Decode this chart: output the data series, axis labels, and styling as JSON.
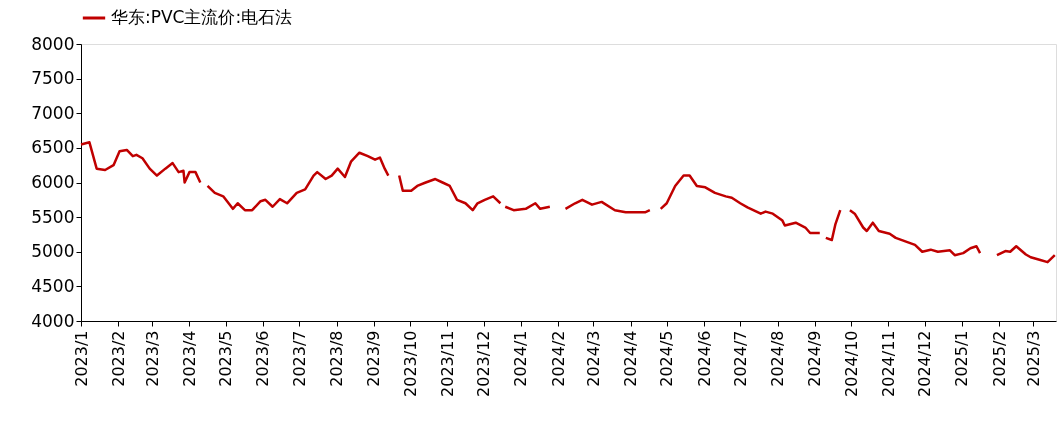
{
  "chart_data": {
    "type": "line",
    "legend": "top",
    "grid": false,
    "line_style": "solid",
    "marker": "none",
    "xlim": [
      "2023-01-01",
      "2025-03-20"
    ],
    "xticks": [
      {
        "value": "2023-01-01",
        "label": "2023/1"
      },
      {
        "value": "2023-02-01",
        "label": "2023/2"
      },
      {
        "value": "2023-03-01",
        "label": "2023/3"
      },
      {
        "value": "2023-04-01",
        "label": "2023/4"
      },
      {
        "value": "2023-05-01",
        "label": "2023/5"
      },
      {
        "value": "2023-06-01",
        "label": "2023/6"
      },
      {
        "value": "2023-07-01",
        "label": "2023/7"
      },
      {
        "value": "2023-08-01",
        "label": "2023/8"
      },
      {
        "value": "2023-09-01",
        "label": "2023/9"
      },
      {
        "value": "2023-10-01",
        "label": "2023/10"
      },
      {
        "value": "2023-11-01",
        "label": "2023/11"
      },
      {
        "value": "2023-12-01",
        "label": "2023/12"
      },
      {
        "value": "2024-01-01",
        "label": "2024/1"
      },
      {
        "value": "2024-02-01",
        "label": "2024/2"
      },
      {
        "value": "2024-03-01",
        "label": "2024/3"
      },
      {
        "value": "2024-04-01",
        "label": "2024/4"
      },
      {
        "value": "2024-05-01",
        "label": "2024/5"
      },
      {
        "value": "2024-06-01",
        "label": "2024/6"
      },
      {
        "value": "2024-07-01",
        "label": "2024/7"
      },
      {
        "value": "2024-08-01",
        "label": "2024/8"
      },
      {
        "value": "2024-09-01",
        "label": "2024/9"
      },
      {
        "value": "2024-10-01",
        "label": "2024/10"
      },
      {
        "value": "2024-11-01",
        "label": "2024/11"
      },
      {
        "value": "2024-12-01",
        "label": "2024/12"
      },
      {
        "value": "2025-01-01",
        "label": "2025/1"
      },
      {
        "value": "2025-02-01",
        "label": "2025/2"
      },
      {
        "value": "2025-03-01",
        "label": "2025/3"
      }
    ],
    "ylim": [
      4000,
      8000
    ],
    "yticks": [
      4000,
      4500,
      5000,
      5500,
      6000,
      6500,
      7000,
      7500,
      8000
    ],
    "x": [
      "2023-01-01",
      "2023-01-08",
      "2023-01-14",
      "2023-01-21",
      "2023-01-28",
      "2023-02-02",
      "2023-02-08",
      "2023-02-13",
      "2023-02-16",
      "2023-02-21",
      "2023-02-27",
      "2023-03-05",
      "2023-03-12",
      "2023-03-18",
      "2023-03-23",
      "2023-03-27",
      "2023-03-28",
      "2023-04-01",
      "2023-04-06",
      "2023-04-10",
      "2023-04-13",
      "2023-04-16",
      "2023-04-22",
      "2023-04-29",
      "2023-05-07",
      "2023-05-11",
      "2023-05-17",
      "2023-05-23",
      "2023-05-30",
      "2023-06-03",
      "2023-06-09",
      "2023-06-15",
      "2023-06-21",
      "2023-06-29",
      "2023-07-06",
      "2023-07-13",
      "2023-07-16",
      "2023-07-23",
      "2023-07-28",
      "2023-08-02",
      "2023-08-08",
      "2023-08-13",
      "2023-08-20",
      "2023-08-27",
      "2023-09-02",
      "2023-09-06",
      "2023-09-10",
      "2023-09-13",
      "2023-09-17",
      "2023-09-22",
      "2023-09-25",
      "2023-10-02",
      "2023-10-07",
      "2023-10-14",
      "2023-10-22",
      "2023-10-28",
      "2023-11-03",
      "2023-11-09",
      "2023-11-16",
      "2023-11-22",
      "2023-11-26",
      "2023-12-02",
      "2023-12-09",
      "2023-12-15",
      "2023-12-17",
      "2023-12-19",
      "2023-12-26",
      "2024-01-05",
      "2024-01-13",
      "2024-01-17",
      "2024-01-25",
      "2024-02-01",
      "2024-02-07",
      "2024-02-15",
      "2024-02-21",
      "2024-02-29",
      "2024-03-08",
      "2024-03-19",
      "2024-03-28",
      "2024-04-13",
      "2024-04-17",
      "2024-04-21",
      "2024-04-26",
      "2024-05-01",
      "2024-05-08",
      "2024-05-15",
      "2024-05-20",
      "2024-05-26",
      "2024-06-02",
      "2024-06-10",
      "2024-06-19",
      "2024-06-24",
      "2024-07-01",
      "2024-07-07",
      "2024-07-18",
      "2024-07-22",
      "2024-07-28",
      "2024-08-05",
      "2024-08-07",
      "2024-08-16",
      "2024-08-24",
      "2024-08-28",
      "2024-09-05",
      "2024-09-07",
      "2024-09-10",
      "2024-09-15",
      "2024-09-18",
      "2024-09-22",
      "2024-09-26",
      "2024-09-30",
      "2024-10-04",
      "2024-10-11",
      "2024-10-14",
      "2024-10-19",
      "2024-10-24",
      "2024-11-02",
      "2024-11-07",
      "2024-11-15",
      "2024-11-23",
      "2024-11-29",
      "2024-12-06",
      "2024-12-12",
      "2024-12-22",
      "2024-12-26",
      "2025-01-02",
      "2025-01-08",
      "2025-01-13",
      "2025-01-16",
      "2025-01-23",
      "2025-01-30",
      "2025-02-06",
      "2025-02-10",
      "2025-02-15",
      "2025-02-23",
      "2025-02-27",
      "2025-03-07",
      "2025-03-13",
      "2025-03-19"
    ],
    "series": [
      {
        "name": "华东:PVC主流价:电石法",
        "color": "#c00000",
        "values": [
          6550,
          6580,
          6200,
          6180,
          6250,
          6450,
          6470,
          6380,
          6400,
          6350,
          6200,
          6100,
          6200,
          6280,
          6150,
          6170,
          6000,
          6150,
          6150,
          6000,
          null,
          5950,
          5850,
          5800,
          5620,
          5700,
          5600,
          5600,
          5730,
          5750,
          5650,
          5760,
          5700,
          5850,
          5900,
          6100,
          6150,
          6050,
          6100,
          6200,
          6080,
          6300,
          6430,
          6380,
          6330,
          6360,
          6200,
          6100,
          null,
          6100,
          5880,
          5880,
          5950,
          6000,
          6050,
          6000,
          5950,
          5750,
          5700,
          5600,
          5700,
          5750,
          5800,
          5700,
          null,
          5650,
          5600,
          5620,
          5700,
          5620,
          5650,
          null,
          5620,
          5700,
          5750,
          5680,
          5720,
          5600,
          5570,
          5570,
          5600,
          null,
          5620,
          5700,
          5950,
          6100,
          6100,
          5950,
          5930,
          5850,
          5800,
          5780,
          5700,
          5640,
          5550,
          5580,
          5550,
          5450,
          5380,
          5420,
          5350,
          5270,
          5270,
          null,
          5200,
          5170,
          5400,
          5600,
          null,
          5600,
          5550,
          5350,
          5300,
          5420,
          5300,
          5260,
          5200,
          5150,
          5100,
          5000,
          5030,
          5000,
          5020,
          4950,
          4980,
          5050,
          5080,
          4980,
          null,
          4950,
          5010,
          5000,
          5080,
          4960,
          4920,
          4880,
          4850,
          4950
        ]
      }
    ]
  }
}
